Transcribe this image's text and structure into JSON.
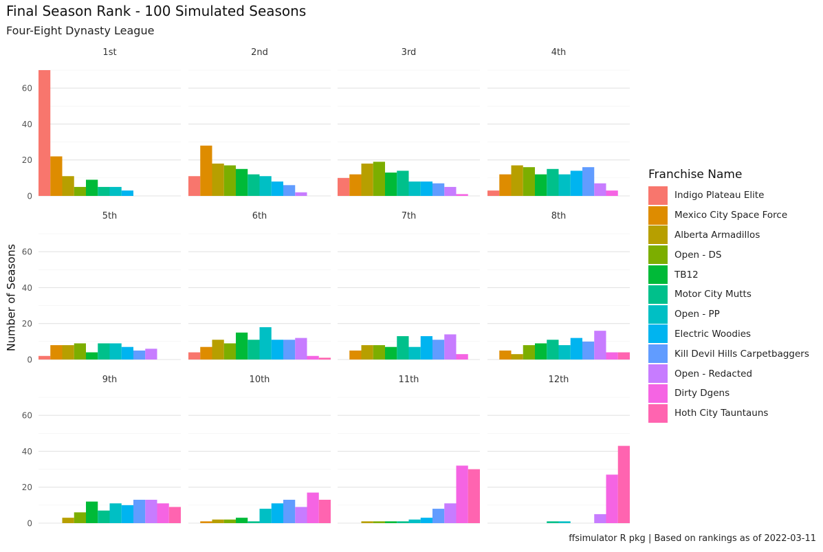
{
  "chart_data": {
    "type": "bar",
    "title": "Final Season Rank - 100 Simulated Seasons",
    "subtitle": "Four-Eight Dynasty League",
    "ylabel": "Number of Seasons",
    "xlabel": "",
    "caption": "ffsimulator R pkg | Based on rankings as of 2022-03-11",
    "ylim": [
      0,
      70
    ],
    "yticks": [
      0,
      20,
      40,
      60
    ],
    "grid": true,
    "legend_title": "Franchise Name",
    "legend_position": "right",
    "facets": [
      "1st",
      "2nd",
      "3rd",
      "4th",
      "5th",
      "6th",
      "7th",
      "8th",
      "9th",
      "10th",
      "11th",
      "12th"
    ],
    "series": [
      {
        "name": "Indigo Plateau Elite",
        "color": "#F8766D",
        "values": [
          70,
          11,
          10,
          3,
          2,
          4,
          0,
          0,
          0,
          0,
          0,
          0
        ]
      },
      {
        "name": "Mexico City Space Force",
        "color": "#DE8C00",
        "values": [
          22,
          28,
          12,
          12,
          8,
          7,
          5,
          5,
          0,
          1,
          0,
          0
        ]
      },
      {
        "name": "Alberta Armadillos",
        "color": "#B79F00",
        "values": [
          11,
          18,
          18,
          17,
          8,
          11,
          8,
          3,
          3,
          2,
          1,
          0
        ]
      },
      {
        "name": "Open - DS",
        "color": "#7CAE00",
        "values": [
          5,
          17,
          19,
          16,
          9,
          9,
          8,
          8,
          6,
          2,
          1,
          0
        ]
      },
      {
        "name": "TB12",
        "color": "#00BA38",
        "values": [
          9,
          15,
          13,
          12,
          4,
          15,
          7,
          9,
          12,
          3,
          1,
          0
        ]
      },
      {
        "name": "Motor City Mutts",
        "color": "#00C08B",
        "values": [
          5,
          12,
          14,
          15,
          9,
          11,
          13,
          11,
          7,
          1,
          1,
          1
        ]
      },
      {
        "name": "Open - PP",
        "color": "#00BFC4",
        "values": [
          5,
          11,
          8,
          12,
          9,
          18,
          7,
          8,
          11,
          8,
          2,
          1
        ]
      },
      {
        "name": "Electric Woodies",
        "color": "#00B4F0",
        "values": [
          3,
          8,
          8,
          14,
          7,
          11,
          13,
          12,
          10,
          11,
          3,
          0
        ]
      },
      {
        "name": "Kill Devil Hills Carpetbaggers",
        "color": "#619CFF",
        "values": [
          0,
          6,
          7,
          16,
          5,
          11,
          11,
          10,
          13,
          13,
          8,
          0
        ]
      },
      {
        "name": "Open - Redacted",
        "color": "#C77CFF",
        "values": [
          0,
          2,
          5,
          7,
          6,
          12,
          14,
          16,
          13,
          9,
          11,
          5
        ]
      },
      {
        "name": "Dirty Dgens",
        "color": "#F564E3",
        "values": [
          0,
          0,
          1,
          3,
          0,
          2,
          3,
          4,
          11,
          17,
          32,
          27
        ]
      },
      {
        "name": "Hoth City Tauntauns",
        "color": "#FF64B0",
        "values": [
          0,
          0,
          0,
          0,
          0,
          1,
          0,
          4,
          9,
          13,
          30,
          43
        ]
      }
    ]
  }
}
